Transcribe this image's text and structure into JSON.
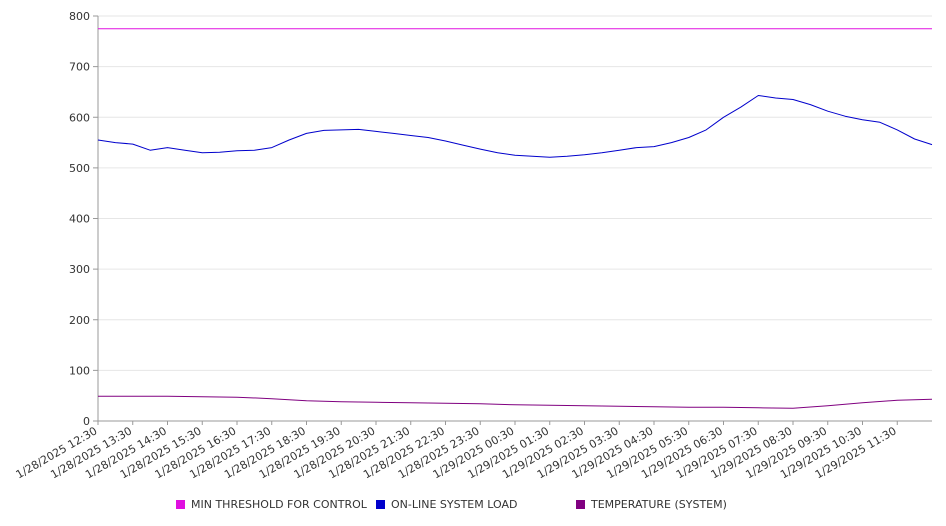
{
  "chart_data": {
    "type": "line",
    "ylim": [
      0,
      800
    ],
    "yticks": [
      0,
      100,
      200,
      300,
      400,
      500,
      600,
      700,
      800
    ],
    "xlim": [
      "1/28/2025 12:30",
      "1/29/2025 12:30"
    ],
    "x_tick_labels": [
      "1/28/2025 12:30",
      "1/28/2025 13:30",
      "1/28/2025 14:30",
      "1/28/2025 15:30",
      "1/28/2025 16:30",
      "1/28/2025 17:30",
      "1/28/2025 18:30",
      "1/28/2025 19:30",
      "1/28/2025 20:30",
      "1/28/2025 21:30",
      "1/28/2025 22:30",
      "1/28/2025 23:30",
      "1/29/2025 00:30",
      "1/29/2025 01:30",
      "1/29/2025 02:30",
      "1/29/2025 03:30",
      "1/29/2025 04:30",
      "1/29/2025 05:30",
      "1/29/2025 06:30",
      "1/29/2025 07:30",
      "1/29/2025 08:30",
      "1/29/2025 09:30",
      "1/29/2025 10:30",
      "1/29/2025 11:30"
    ],
    "grid": true,
    "legend_position": "bottom",
    "series": [
      {
        "name": "MIN THRESHOLD FOR CONTROL",
        "color": "#e010e0",
        "points": [
          [
            "1/28/2025 12:30",
            775
          ],
          [
            "1/29/2025 12:30",
            775
          ]
        ]
      },
      {
        "name": "ON-LINE SYSTEM LOAD",
        "color": "#0000cc",
        "points": [
          [
            "1/28/2025 12:30",
            555
          ],
          [
            "1/28/2025 13:00",
            550
          ],
          [
            "1/28/2025 13:30",
            547
          ],
          [
            "1/28/2025 14:00",
            535
          ],
          [
            "1/28/2025 14:30",
            540
          ],
          [
            "1/28/2025 15:00",
            535
          ],
          [
            "1/28/2025 15:30",
            530
          ],
          [
            "1/28/2025 16:00",
            531
          ],
          [
            "1/28/2025 16:30",
            534
          ],
          [
            "1/28/2025 17:00",
            535
          ],
          [
            "1/28/2025 17:30",
            540
          ],
          [
            "1/28/2025 18:00",
            555
          ],
          [
            "1/28/2025 18:30",
            568
          ],
          [
            "1/28/2025 19:00",
            574
          ],
          [
            "1/28/2025 19:30",
            575
          ],
          [
            "1/28/2025 20:00",
            576
          ],
          [
            "1/28/2025 20:30",
            572
          ],
          [
            "1/28/2025 21:00",
            568
          ],
          [
            "1/28/2025 21:30",
            564
          ],
          [
            "1/28/2025 22:00",
            560
          ],
          [
            "1/28/2025 22:30",
            553
          ],
          [
            "1/28/2025 23:00",
            545
          ],
          [
            "1/28/2025 23:30",
            537
          ],
          [
            "1/29/2025 00:00",
            530
          ],
          [
            "1/29/2025 00:30",
            525
          ],
          [
            "1/29/2025 01:00",
            523
          ],
          [
            "1/29/2025 01:30",
            521
          ],
          [
            "1/29/2025 02:00",
            523
          ],
          [
            "1/29/2025 02:30",
            526
          ],
          [
            "1/29/2025 03:00",
            530
          ],
          [
            "1/29/2025 03:30",
            535
          ],
          [
            "1/29/2025 04:00",
            540
          ],
          [
            "1/29/2025 04:30",
            542
          ],
          [
            "1/29/2025 05:00",
            550
          ],
          [
            "1/29/2025 05:30",
            560
          ],
          [
            "1/29/2025 06:00",
            575
          ],
          [
            "1/29/2025 06:30",
            600
          ],
          [
            "1/29/2025 07:00",
            620
          ],
          [
            "1/29/2025 07:30",
            643
          ],
          [
            "1/29/2025 08:00",
            638
          ],
          [
            "1/29/2025 08:30",
            635
          ],
          [
            "1/29/2025 09:00",
            625
          ],
          [
            "1/29/2025 09:30",
            612
          ],
          [
            "1/29/2025 10:00",
            602
          ],
          [
            "1/29/2025 10:30",
            595
          ],
          [
            "1/29/2025 11:00",
            590
          ],
          [
            "1/29/2025 11:30",
            575
          ],
          [
            "1/29/2025 12:00",
            557
          ],
          [
            "1/29/2025 12:30",
            546
          ]
        ]
      },
      {
        "name": "TEMPERATURE (SYSTEM)",
        "color": "#800080",
        "points": [
          [
            "1/28/2025 12:30",
            49
          ],
          [
            "1/28/2025 13:30",
            49
          ],
          [
            "1/28/2025 14:30",
            49
          ],
          [
            "1/28/2025 15:30",
            48
          ],
          [
            "1/28/2025 16:30",
            47
          ],
          [
            "1/28/2025 17:30",
            44
          ],
          [
            "1/28/2025 18:30",
            40
          ],
          [
            "1/28/2025 19:30",
            38
          ],
          [
            "1/28/2025 20:30",
            37
          ],
          [
            "1/28/2025 21:30",
            36
          ],
          [
            "1/28/2025 22:30",
            35
          ],
          [
            "1/28/2025 23:30",
            34
          ],
          [
            "1/29/2025 00:30",
            32
          ],
          [
            "1/29/2025 01:30",
            31
          ],
          [
            "1/29/2025 02:30",
            30
          ],
          [
            "1/29/2025 03:30",
            29
          ],
          [
            "1/29/2025 04:30",
            28
          ],
          [
            "1/29/2025 05:30",
            27
          ],
          [
            "1/29/2025 06:30",
            27
          ],
          [
            "1/29/2025 07:30",
            26
          ],
          [
            "1/29/2025 08:30",
            25
          ],
          [
            "1/29/2025 09:30",
            30
          ],
          [
            "1/29/2025 10:30",
            36
          ],
          [
            "1/29/2025 11:30",
            41
          ],
          [
            "1/29/2025 12:30",
            43
          ]
        ]
      }
    ]
  }
}
